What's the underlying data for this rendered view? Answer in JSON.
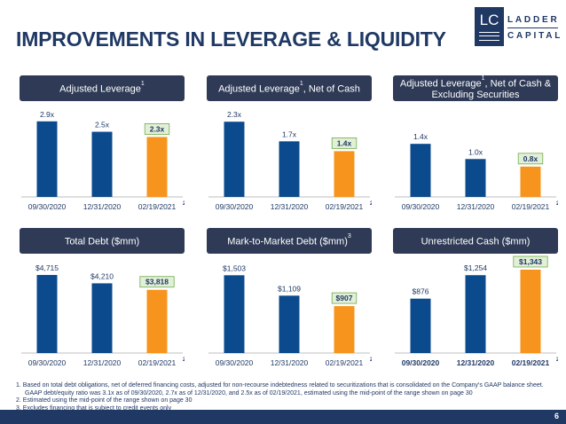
{
  "title": "IMPROVEMENTS IN LEVERAGE & LIQUIDITY",
  "logo": {
    "mark": "LC",
    "line1": "LADDER",
    "line2": "CAPITAL"
  },
  "chart_data": [
    {
      "type": "bar",
      "title": "Adjusted Leverage",
      "title_sup": "1",
      "categories": [
        "09/30/2020",
        "12/31/2020",
        "02/19/2021"
      ],
      "category_sups": [
        "",
        "",
        "2"
      ],
      "values": [
        2.9,
        2.5,
        2.3
      ],
      "labels": [
        "2.9x",
        "2.5x",
        "2.3x"
      ],
      "highlight": [
        false,
        false,
        true
      ],
      "ylim": [
        0,
        3.2
      ],
      "xlabel": "",
      "ylabel": "",
      "grid": false
    },
    {
      "type": "bar",
      "title": "Adjusted Leverage",
      "title_sup": "1",
      "title_suffix": ", Net of Cash",
      "categories": [
        "09/30/2020",
        "12/31/2020",
        "02/19/2021"
      ],
      "category_sups": [
        "",
        "",
        "2"
      ],
      "values": [
        2.3,
        1.7,
        1.4
      ],
      "labels": [
        "2.3x",
        "1.7x",
        "1.4x"
      ],
      "highlight": [
        false,
        false,
        true
      ],
      "ylim": [
        0,
        2.55
      ],
      "xlabel": "",
      "ylabel": "",
      "grid": false
    },
    {
      "type": "bar",
      "title": "Adjusted Leverage",
      "title_sup": "1",
      "title_suffix": ", Net of Cash & Excluding Securities",
      "categories": [
        "09/30/2020",
        "12/31/2020",
        "02/19/2021"
      ],
      "category_sups": [
        "",
        "",
        "2"
      ],
      "values": [
        1.4,
        1.0,
        0.8
      ],
      "labels": [
        "1.4x",
        "1.0x",
        "0.8x"
      ],
      "highlight": [
        false,
        false,
        true
      ],
      "ylim": [
        0,
        2.2
      ],
      "xlabel": "",
      "ylabel": "",
      "grid": false
    },
    {
      "type": "bar",
      "title": "Total Debt ($mm)",
      "title_sup": "",
      "categories": [
        "09/30/2020",
        "12/31/2020",
        "02/19/2021"
      ],
      "category_sups": [
        "",
        "",
        "2"
      ],
      "values": [
        4715,
        4210,
        3818
      ],
      "labels": [
        "$4,715",
        "$4,210",
        "$3,818"
      ],
      "highlight": [
        false,
        false,
        true
      ],
      "ylim": [
        0,
        5250
      ],
      "xlabel": "",
      "ylabel": "",
      "grid": false
    },
    {
      "type": "bar",
      "title": "Mark-to-Market Debt ($mm)",
      "title_sup": "3",
      "categories": [
        "09/30/2020",
        "12/31/2020",
        "02/19/2021"
      ],
      "category_sups": [
        "",
        "",
        "2"
      ],
      "values": [
        1503,
        1109,
        907
      ],
      "labels": [
        "$1,503",
        "$1,109",
        "$907"
      ],
      "highlight": [
        false,
        false,
        true
      ],
      "ylim": [
        0,
        1680
      ],
      "xlabel": "",
      "ylabel": "",
      "grid": false
    },
    {
      "type": "bar",
      "title": "Unrestricted Cash ($mm)",
      "title_sup": "",
      "categories": [
        "09/30/2020",
        "12/31/2020",
        "02/19/2021"
      ],
      "category_sups": [
        "",
        "",
        "2"
      ],
      "values": [
        876,
        1254,
        1343
      ],
      "labels": [
        "$876",
        "$1,254",
        "$1,343"
      ],
      "highlight": [
        false,
        false,
        true
      ],
      "ylim": [
        0,
        1400
      ],
      "xlabel": "",
      "ylabel": "",
      "grid": false,
      "bold_categories": true
    }
  ],
  "colors": {
    "bar": "#0b4a8c",
    "highlight": "#f7941d",
    "header": "#2e3a56",
    "label_box": "#e2efd9",
    "label_border": "#70ad47"
  },
  "footnotes": [
    "1. Based on total debt obligations, net of deferred financing costs, adjusted for non-recourse indebtedness related to securitizations that is consolidated on the Company's GAAP balance sheet.",
    "GAAP debt/equity ratio was 3.1x as of 09/30/2020, 2.7x as of 12/31/2020, and 2.5x as of 02/19/2021, estimated using the mid-point of the range shown on page 30",
    "2. Estimated using the mid-point of the range shown on page 30",
    "3. Excludes financing that is subject to credit events only"
  ],
  "page_number": "6"
}
